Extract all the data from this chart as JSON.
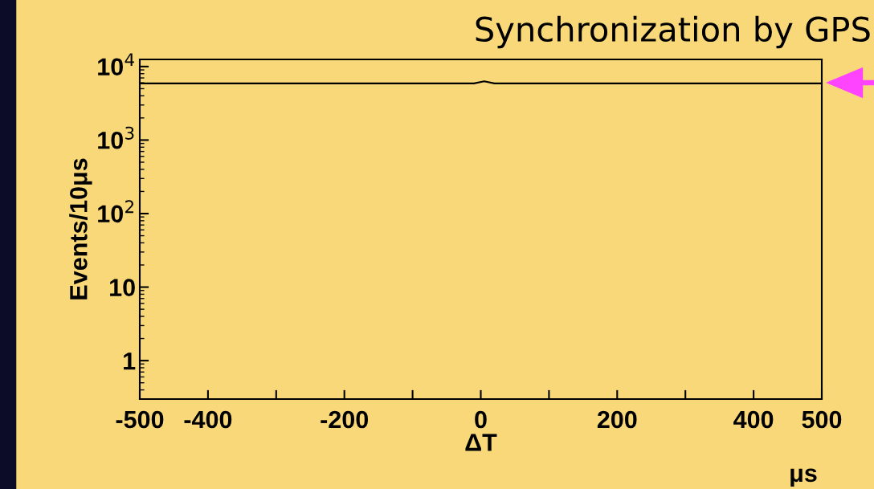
{
  "chart_data": {
    "type": "line",
    "title": "Synchronization by GPS",
    "xlabel": "ΔT",
    "ylabel": "Events/10μs",
    "annotations": [
      "μs"
    ],
    "x": [
      -500,
      -10,
      5,
      20,
      500
    ],
    "values": [
      5900,
      5900,
      6300,
      5900,
      5900
    ],
    "color": "#000000",
    "log": true,
    "grid": false,
    "legend": false,
    "marker": "none",
    "xlim": [
      -500,
      500
    ],
    "xticks": [
      -500,
      -400,
      {
        "value": -300,
        "label": null
      },
      -200,
      {
        "value": -100,
        "label": null
      },
      0,
      {
        "value": 100,
        "label": null
      },
      200,
      {
        "value": 300,
        "label": null
      },
      400,
      500
    ],
    "ylim": [
      0.3,
      12500
    ],
    "yticks": [
      1,
      10,
      {
        "value": 100,
        "label": "10$^{2}$"
      },
      {
        "value": 1000,
        "label": "10$^{3}$"
      },
      {
        "value": 10000,
        "label": "10$^{4}$"
      }
    ]
  }
}
